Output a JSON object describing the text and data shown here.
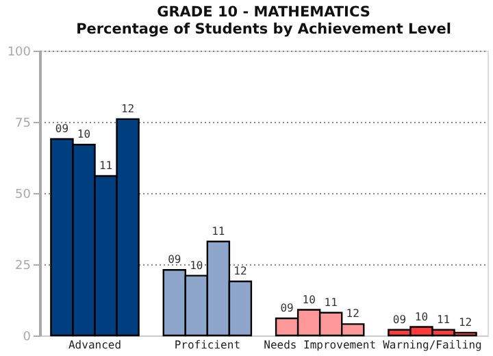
{
  "chart_data": {
    "type": "bar",
    "title": [
      "GRADE 10 - MATHEMATICS",
      "Percentage of Students by Achievement Level"
    ],
    "categories": [
      "Advanced",
      "Proficient",
      "Needs Improvement",
      "Warning/Failing"
    ],
    "series": [
      {
        "name": "09",
        "colors": [
          "#003f7f",
          "#8ea6cc",
          "#ff9999",
          "#ff3b3b"
        ],
        "values": [
          69,
          23,
          6,
          2
        ]
      },
      {
        "name": "10",
        "colors": [
          "#003f7f",
          "#8ea6cc",
          "#ff9999",
          "#ff3b3b"
        ],
        "values": [
          67,
          21,
          9,
          3
        ]
      },
      {
        "name": "11",
        "colors": [
          "#003f7f",
          "#8ea6cc",
          "#ff9999",
          "#ff3b3b"
        ],
        "values": [
          56,
          33,
          8,
          2
        ]
      },
      {
        "name": "12",
        "colors": [
          "#003f7f",
          "#8ea6cc",
          "#ff9999",
          "#ff3b3b"
        ],
        "values": [
          76,
          19,
          4,
          1
        ]
      }
    ],
    "ylim": [
      0,
      100
    ],
    "yticks": [
      0,
      25,
      50,
      75,
      100
    ],
    "grid": "y"
  }
}
